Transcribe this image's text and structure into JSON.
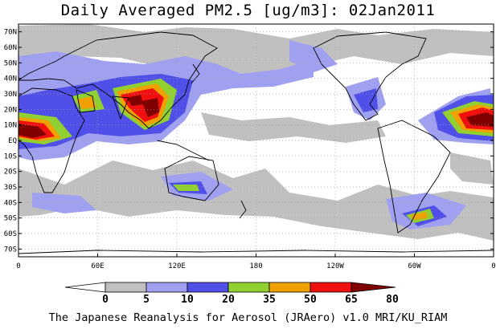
{
  "title": "Daily Averaged PM2.5 [ug/m3]: 02Jan2011",
  "footer": "The Japanese Reanalysis for Aerosol (JRAero) v1.0 MRI/KU_RIAM",
  "lat_labels": [
    "70N",
    "60N",
    "50N",
    "40N",
    "30N",
    "20N",
    "10N",
    "EQ",
    "10S",
    "20S",
    "30S",
    "40S",
    "50S",
    "60S",
    "70S"
  ],
  "lon_labels": [
    "0",
    "60E",
    "120E",
    "180",
    "120W",
    "60W",
    "0"
  ],
  "colorbar": {
    "levels": [
      "0",
      "5",
      "10",
      "20",
      "35",
      "50",
      "65",
      "80"
    ],
    "colors": [
      "#ffffff",
      "#c0c0c0",
      "#a0a0f0",
      "#5050e8",
      "#90d030",
      "#f0a000",
      "#f01010",
      "#800000"
    ]
  },
  "colors": {
    "land_outline": "#000000",
    "grid": "#a0a0a0"
  }
}
